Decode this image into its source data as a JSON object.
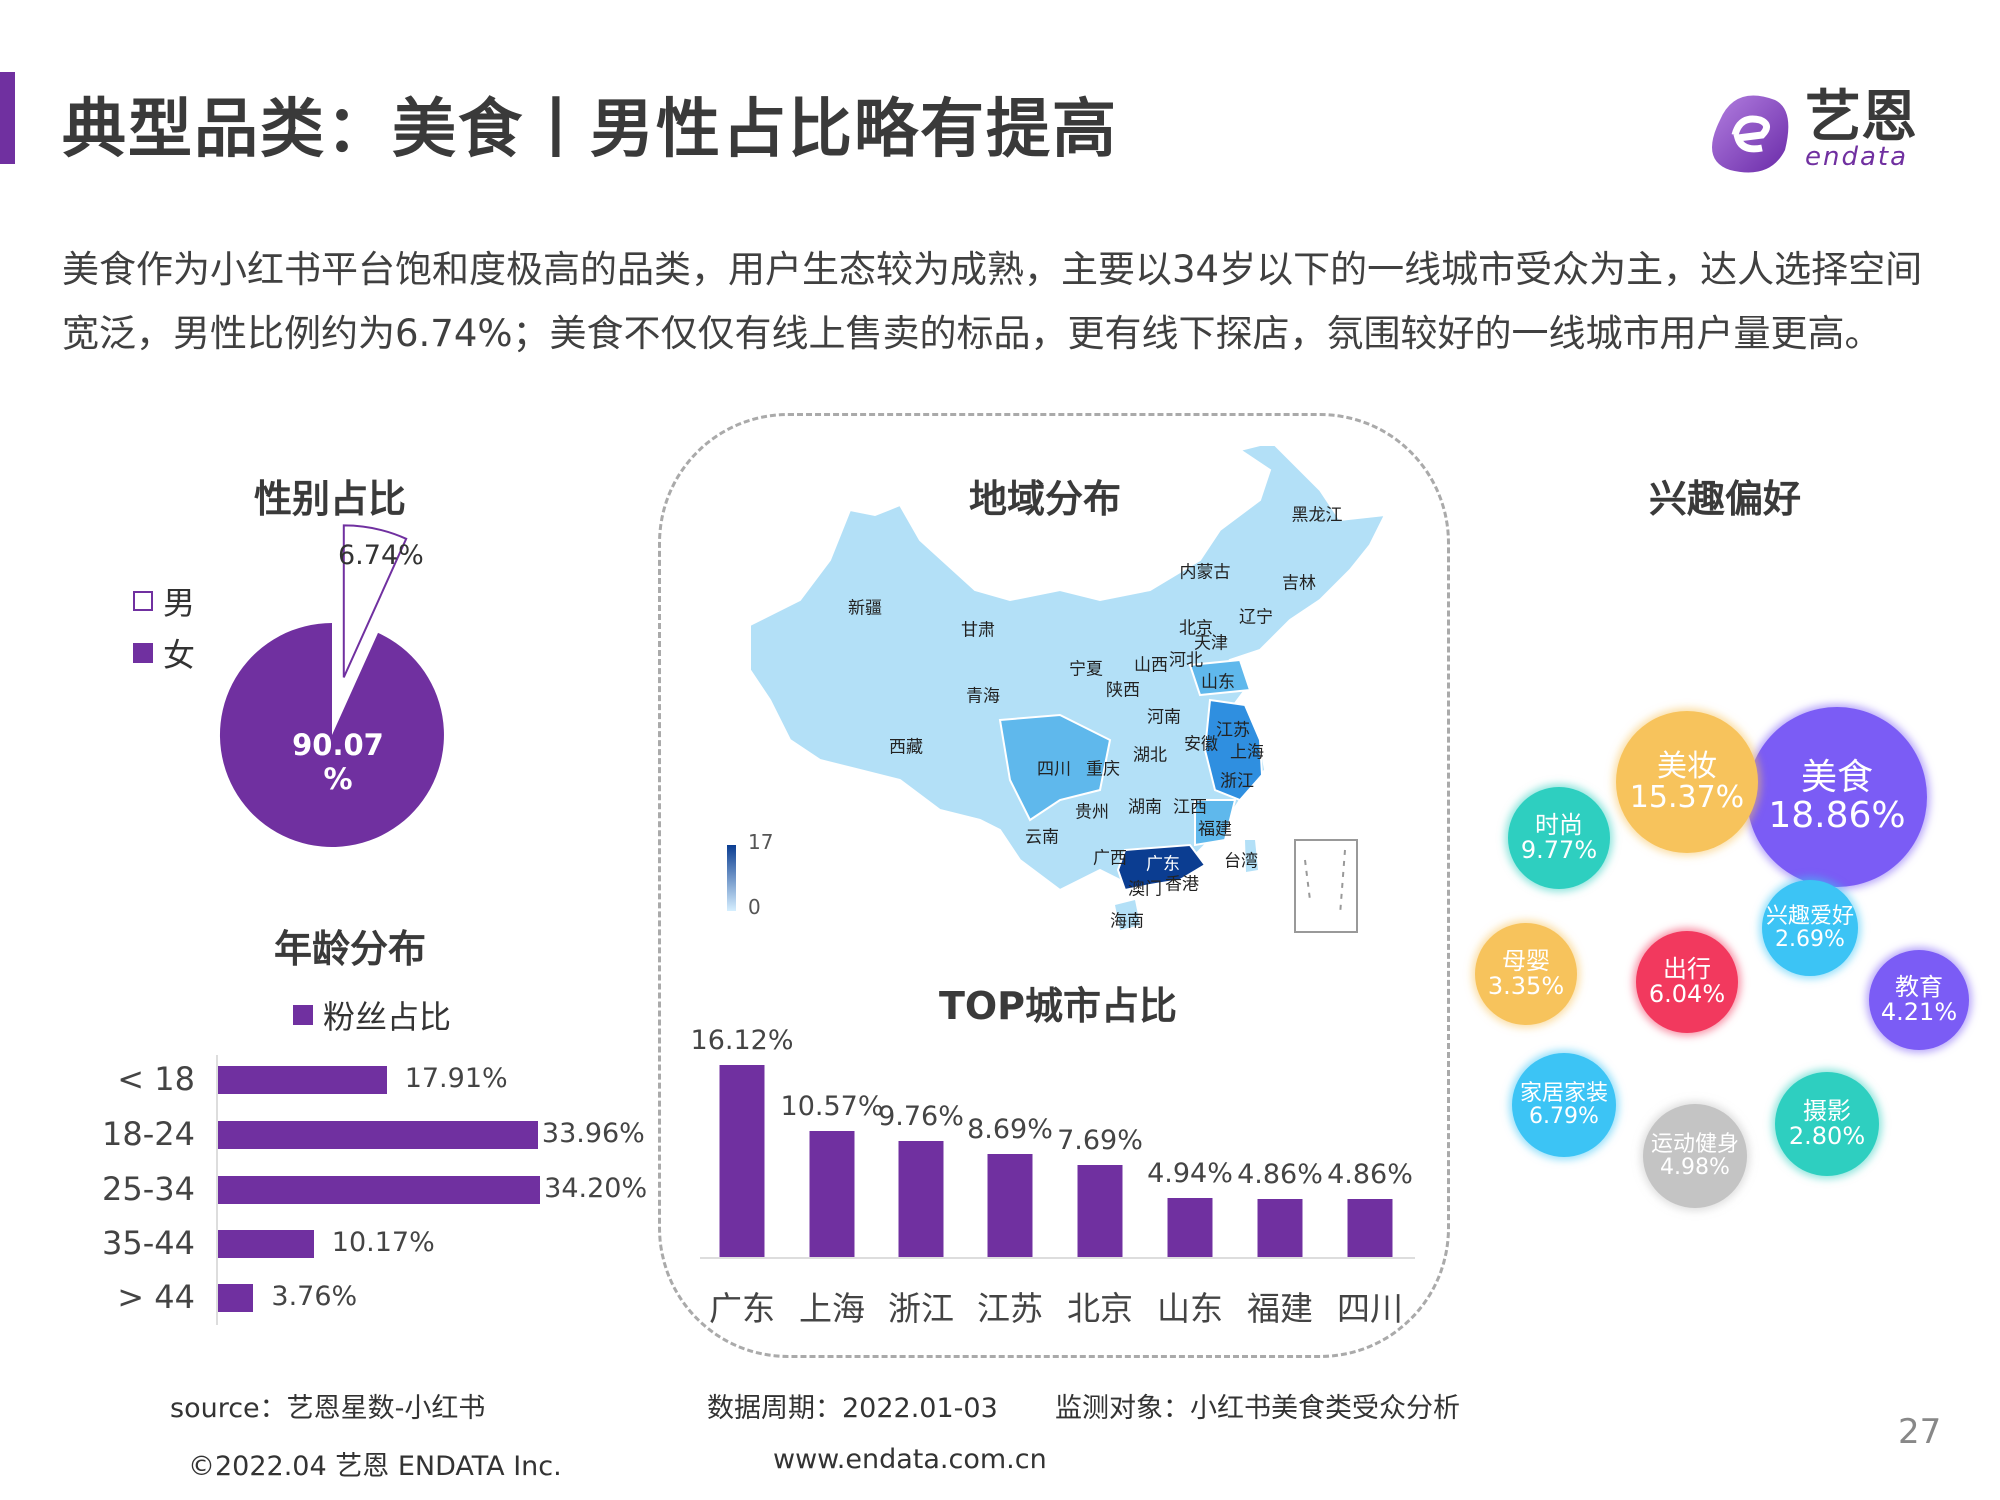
{
  "header": {
    "title": "典型品类：美食丨男性占比略有提高",
    "logo_cn": "艺恩",
    "logo_en": "endata"
  },
  "intro": "美食作为小红书平台饱和度极高的品类，用户生态较为成熟，主要以34岁以下的一线城市受众为主，达人选择空间宽泛，男性比例约为6.74%；美食不仅仅有线上售卖的标品，更有线下探店，氛围较好的一线城市用户量更高。",
  "colors": {
    "accent": "#7030a0",
    "map_light": "#b3e0f7",
    "map_mid": "#5fb8ec",
    "map_dark": "#0b3d91"
  },
  "gender": {
    "heading": "性别占比",
    "legend": [
      {
        "label": "男"
      },
      {
        "label": "女"
      }
    ],
    "male_pct_label": "6.74%",
    "female_pct_label": "90.07",
    "female_pct_unit": "%"
  },
  "age": {
    "heading": "年龄分布",
    "legend": "粉丝占比",
    "rows": [
      {
        "label": "< 18",
        "value": 17.91,
        "text": "17.91%"
      },
      {
        "label": "18-24",
        "value": 33.96,
        "text": "33.96%"
      },
      {
        "label": "25-34",
        "value": 34.2,
        "text": "34.20%"
      },
      {
        "label": "35-44",
        "value": 10.17,
        "text": "10.17%"
      },
      {
        "label": "> 44",
        "value": 3.76,
        "text": "3.76%"
      }
    ]
  },
  "map": {
    "heading": "地域分布",
    "scale_max": "17",
    "scale_min": "0",
    "provinces": [
      "新疆",
      "甘肃",
      "内蒙古",
      "黑龙江",
      "吉林",
      "辽宁",
      "北京",
      "天津",
      "宁夏",
      "山西",
      "河北",
      "山东",
      "青海",
      "陕西",
      "河南",
      "江苏",
      "西藏",
      "安徽",
      "上海",
      "湖北",
      "四川",
      "重庆",
      "浙江",
      "贵州",
      "湖南",
      "江西",
      "福建",
      "云南",
      "广西",
      "台湾",
      "广东",
      "香港",
      "澳门",
      "海南"
    ]
  },
  "chart_data": {
    "type": "bar",
    "title": "TOP城市占比",
    "categories": [
      "广东",
      "上海",
      "浙江",
      "江苏",
      "北京",
      "山东",
      "福建",
      "四川"
    ],
    "values": [
      16.12,
      10.57,
      9.76,
      8.69,
      7.69,
      4.94,
      4.86,
      4.86
    ],
    "labels": [
      "16.12%",
      "10.57%",
      "9.76%",
      "8.69%",
      "7.69%",
      "4.94%",
      "4.86%",
      "4.86%"
    ],
    "xlabel": "",
    "ylabel": "",
    "ylim": [
      0,
      18
    ]
  },
  "interest": {
    "heading": "兴趣偏好",
    "bubbles": [
      {
        "name": "美食",
        "value": "18.86%",
        "color": "#7b5cf5"
      },
      {
        "name": "美妆",
        "value": "15.37%",
        "color": "#f7c35c"
      },
      {
        "name": "时尚",
        "value": "9.77%",
        "color": "#2ecfc0"
      },
      {
        "name": "兴趣爱好",
        "value": "2.69%",
        "color": "#3cc4f5"
      },
      {
        "name": "母婴",
        "value": "3.35%",
        "color": "#f7c35c"
      },
      {
        "name": "出行",
        "value": "6.04%",
        "color": "#f2395e"
      },
      {
        "name": "教育",
        "value": "4.21%",
        "color": "#7b5cf5"
      },
      {
        "name": "家居家装",
        "value": "6.79%",
        "color": "#3cc4f5"
      },
      {
        "name": "运动健身",
        "value": "4.98%",
        "color": "#c4c4c4"
      },
      {
        "name": "摄影",
        "value": "2.80%",
        "color": "#2ecfc0"
      }
    ]
  },
  "footer": {
    "source": "source：艺恩星数-小红书",
    "period": "数据周期：2022.01-03",
    "subject": "监测对象：小红书美食类受众分析",
    "copyright": "©2022.04 艺恩 ENDATA Inc.",
    "website": "www.endata.com.cn",
    "page_number": "27"
  }
}
